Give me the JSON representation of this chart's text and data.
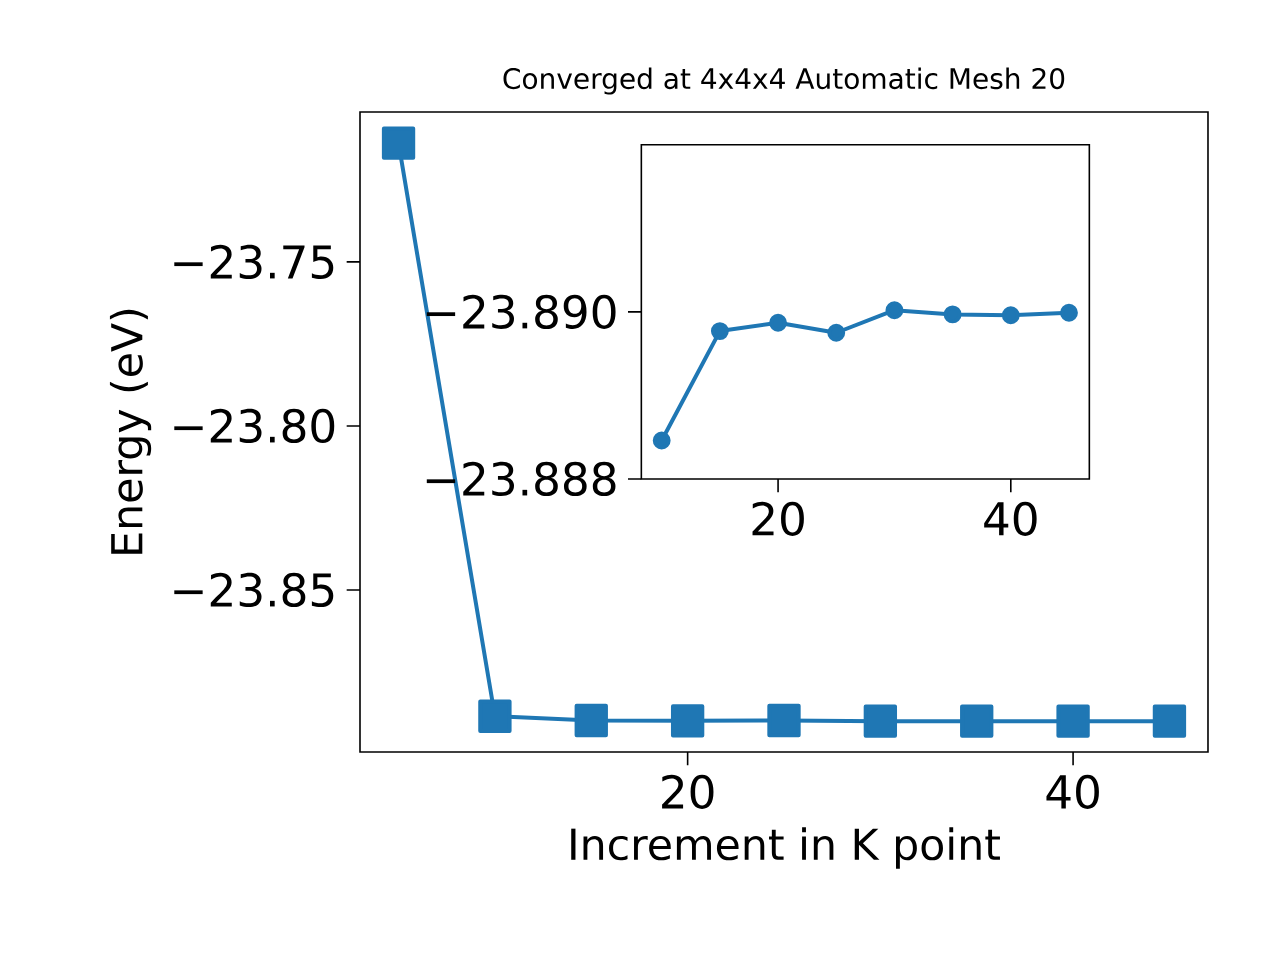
{
  "chart_data": [
    {
      "type": "line",
      "title": "Converged at 4x4x4 Automatic Mesh 20",
      "xlabel": "Increment in K point",
      "ylabel": "Energy (eV)",
      "x": [
        5,
        10,
        15,
        20,
        25,
        30,
        35,
        40,
        45
      ],
      "series": [
        {
          "color": "#1f77b4",
          "values": [
            -23.7138,
            -23.8885,
            -23.8898,
            -23.8899,
            -23.8898,
            -23.89,
            -23.89,
            -23.89,
            -23.89
          ]
        }
      ],
      "xlim": [
        3,
        47
      ],
      "ylim": [
        -23.8994,
        -23.7043
      ],
      "xticks": [
        20,
        40
      ],
      "yticks": [
        {
          "value": -23.85,
          "label": "−23.85"
        },
        {
          "value": -23.8,
          "label": "−23.80"
        },
        {
          "value": -23.75,
          "label": "−23.75"
        }
      ],
      "marker": "square",
      "line_style": "solid"
    },
    {
      "type": "line",
      "x": [
        10,
        15,
        20,
        25,
        30,
        35,
        40,
        45
      ],
      "series": [
        {
          "color": "#1f77b4",
          "values": [
            -23.88846,
            -23.88977,
            -23.88987,
            -23.88975,
            -23.89002,
            -23.88997,
            -23.88996,
            -23.88999
          ]
        }
      ],
      "xlim": [
        8.25,
        46.75
      ],
      "ylim": [
        -23.888,
        -23.892
      ],
      "xticks": [
        20,
        40
      ],
      "yticks": [
        {
          "value": -23.888,
          "label": "−23.888"
        },
        {
          "value": -23.89,
          "label": "−23.890"
        }
      ],
      "marker": "circle",
      "line_style": "solid"
    }
  ]
}
